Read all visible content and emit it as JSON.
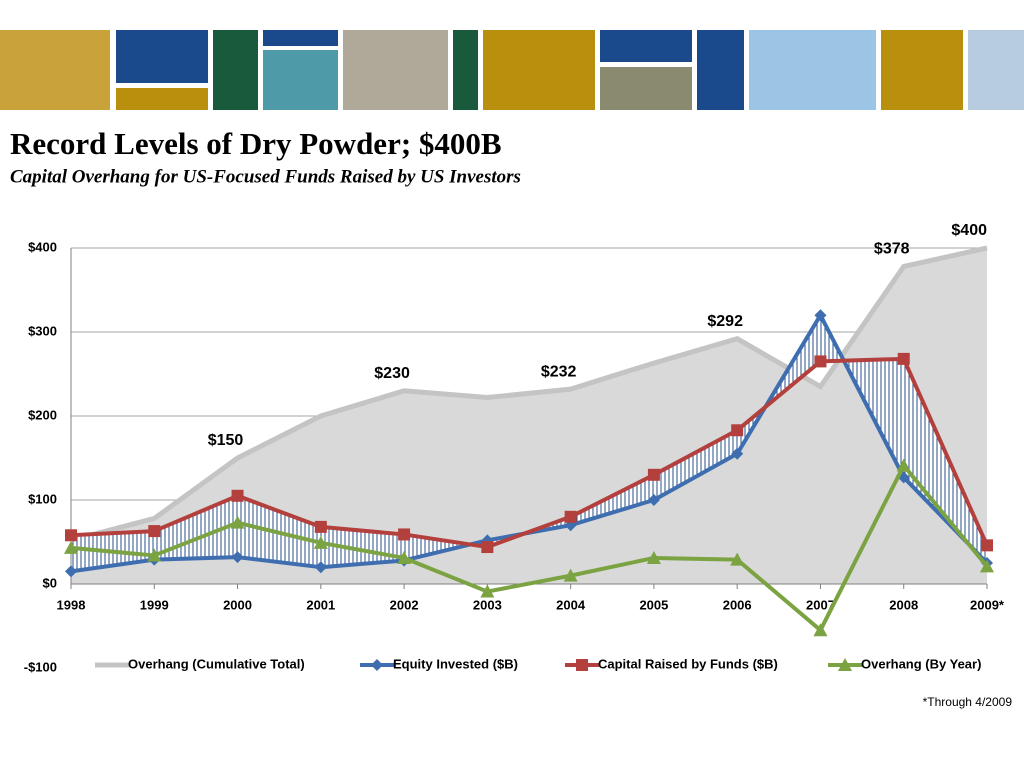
{
  "title": "Record Levels of Dry Powder; $400B",
  "subtitle": "Capital Overhang for US-Focused Funds Raised by US Investors",
  "footnote": "*Through 4/2009",
  "chart_data": {
    "type": "line",
    "categories": [
      "1998",
      "1999",
      "2000",
      "2001",
      "2002",
      "2003",
      "2004",
      "2005",
      "2006",
      "2007",
      "2008",
      "2009*"
    ],
    "ylim": [
      -100,
      400
    ],
    "yticks": [
      {
        "value": -100,
        "label": "-$100"
      },
      {
        "value": 0,
        "label": "$0"
      },
      {
        "value": 100,
        "label": "$100"
      },
      {
        "value": 200,
        "label": "$200"
      },
      {
        "value": 300,
        "label": "$300"
      },
      {
        "value": 400,
        "label": "$400"
      }
    ],
    "grid": true,
    "legend": "bottom",
    "series": [
      {
        "name": "Overhang (Cumulative Total)",
        "color": "#c4c4c4",
        "style": "area",
        "values": [
          52,
          78,
          150,
          200,
          230,
          222,
          232,
          263,
          292,
          235,
          378,
          400
        ],
        "value_labels": [
          null,
          null,
          "$150",
          null,
          "$230",
          null,
          "$232",
          null,
          "$292",
          null,
          "$378",
          "$400"
        ]
      },
      {
        "name": "Equity Invested ($B)",
        "color": "#3e6eb0",
        "marker": "diamond",
        "values": [
          15,
          29,
          32,
          20,
          28,
          52,
          70,
          100,
          155,
          320,
          127,
          25
        ]
      },
      {
        "name": "Capital Raised by Funds ($B)",
        "color": "#b3403c",
        "marker": "square",
        "values": [
          58,
          63,
          105,
          68,
          59,
          44,
          80,
          130,
          183,
          265,
          268,
          46
        ]
      },
      {
        "name": "Overhang (By Year)",
        "color": "#7ba342",
        "marker": "triangle",
        "values": [
          43,
          34,
          73,
          49,
          31,
          -9,
          10,
          31,
          29,
          -55,
          141,
          21
        ]
      }
    ]
  }
}
